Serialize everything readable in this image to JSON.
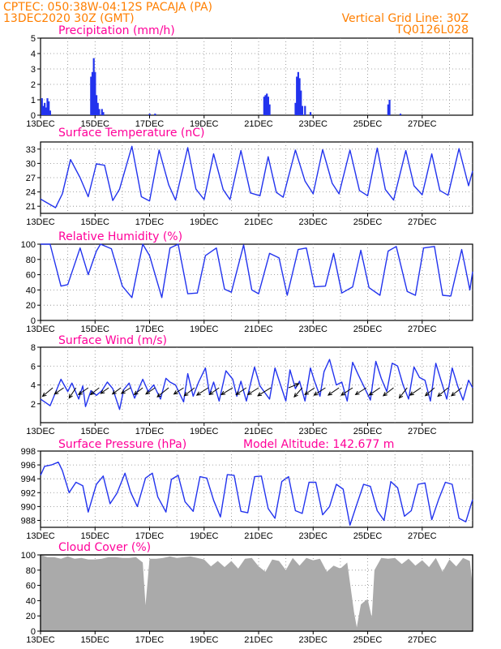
{
  "header": {
    "left_line1": "CPTEC:   050:38W-04:12S   PACAJA (PA)",
    "left_line2": "13DEC2020 30Z (GMT)",
    "right_line1": "Vertical Grid Line: 30Z",
    "right_line2": "TQ0126L028"
  },
  "model_altitude": "Model Altitude: 142.677 m",
  "date_labels": [
    "13DEC",
    "15DEC",
    "17DEC",
    "19DEC",
    "21DEC",
    "23DEC",
    "25DEC",
    "27DEC"
  ],
  "chart_data": [
    {
      "type": "bar",
      "title": "Precipitation (mm/h)",
      "ylim": [
        0,
        5
      ],
      "yticks": [
        0,
        1,
        2,
        3,
        4,
        5
      ],
      "grid": true,
      "x_unit": "days since 13DEC",
      "x": [
        0.05,
        0.1,
        0.15,
        0.2,
        0.25,
        0.3,
        0.35,
        1.85,
        1.9,
        1.95,
        2.0,
        2.05,
        2.1,
        2.15,
        2.25,
        2.3,
        4.0,
        4.2,
        8.2,
        8.25,
        8.3,
        8.35,
        8.4,
        9.35,
        9.4,
        9.45,
        9.5,
        9.55,
        9.6,
        9.7,
        9.9,
        12.75,
        12.8,
        13.2
      ],
      "values": [
        1.1,
        0.6,
        0.8,
        0.5,
        1.1,
        0.9,
        0.3,
        2.5,
        2.8,
        3.7,
        2.8,
        1.3,
        0.8,
        0.4,
        0.4,
        0.2,
        0.1,
        0.1,
        1.2,
        1.3,
        1.4,
        1.2,
        0.7,
        0.8,
        2.5,
        2.8,
        2.4,
        1.6,
        0.6,
        0.6,
        0.2,
        0.7,
        1.0,
        0.1
      ]
    },
    {
      "type": "line",
      "title": "Surface Temperature (nC)",
      "ylim": [
        19.5,
        34.5
      ],
      "yticks": [
        21,
        24,
        27,
        30,
        33
      ],
      "grid": true,
      "x_unit": "days since 13DEC",
      "x": [
        0,
        0.55,
        0.8,
        1.1,
        1.45,
        1.75,
        2.05,
        2.35,
        2.65,
        2.9,
        3.35,
        3.7,
        4.0,
        4.35,
        4.7,
        4.95,
        5.4,
        5.7,
        6.0,
        6.35,
        6.7,
        6.95,
        7.35,
        7.7,
        8.05,
        8.35,
        8.65,
        8.9,
        9.35,
        9.7,
        10.0,
        10.35,
        10.7,
        10.95,
        11.35,
        11.7,
        12.0,
        12.35,
        12.65,
        12.95,
        13.4,
        13.7,
        14.0,
        14.35,
        14.65,
        14.95,
        15.35,
        15.7,
        15.85
      ],
      "values": [
        22.5,
        20.7,
        23.6,
        30.8,
        27.0,
        23.0,
        29.9,
        29.6,
        22.2,
        24.6,
        33.6,
        23.0,
        22.1,
        32.8,
        25.5,
        22.3,
        33.3,
        24.6,
        22.4,
        32.0,
        24.5,
        22.4,
        32.7,
        23.8,
        23.2,
        31.4,
        23.9,
        22.9,
        32.8,
        26.3,
        23.6,
        32.9,
        25.8,
        23.6,
        32.8,
        24.3,
        23.2,
        33.2,
        24.5,
        22.3,
        32.7,
        25.3,
        23.4,
        32.0,
        24.3,
        23.3,
        33.1,
        25.3,
        28.4
      ]
    },
    {
      "type": "line",
      "title": "Relative Humidity (%)",
      "ylim": [
        0,
        100
      ],
      "yticks": [
        0,
        20,
        40,
        60,
        80,
        100
      ],
      "grid": true,
      "x_unit": "days since 13DEC",
      "x": [
        0,
        0.35,
        0.75,
        1.0,
        1.45,
        1.75,
        2.05,
        2.2,
        2.6,
        3.0,
        3.35,
        3.75,
        4.0,
        4.45,
        4.75,
        5.05,
        5.4,
        5.75,
        6.05,
        6.45,
        6.75,
        7.0,
        7.45,
        7.75,
        8.0,
        8.4,
        8.75,
        9.05,
        9.45,
        9.75,
        10.05,
        10.45,
        10.75,
        11.05,
        11.45,
        11.75,
        12.05,
        12.45,
        12.75,
        13.05,
        13.45,
        13.75,
        14.05,
        14.45,
        14.75,
        15.05,
        15.45,
        15.75,
        15.85
      ],
      "values": [
        100,
        100,
        45,
        47,
        95,
        60,
        91,
        100,
        94,
        45,
        30,
        100,
        85,
        30,
        95,
        100,
        35,
        36,
        85,
        95,
        41,
        37,
        99,
        40,
        35,
        88,
        82,
        33,
        93,
        95,
        44,
        45,
        88,
        36,
        44,
        92,
        43,
        33,
        91,
        97,
        38,
        33,
        95,
        97,
        33,
        32,
        93,
        40,
        64
      ]
    },
    {
      "type": "line",
      "title": "Surface Wind (m/s)",
      "ylim": [
        0,
        8
      ],
      "yticks": [
        2,
        4,
        6,
        8
      ],
      "grid": true,
      "x_unit": "days since 13DEC",
      "x": [
        0,
        0.35,
        0.75,
        1.0,
        1.15,
        1.4,
        1.55,
        1.65,
        1.85,
        2.05,
        2.25,
        2.45,
        2.65,
        2.9,
        3.05,
        3.25,
        3.45,
        3.75,
        3.95,
        4.15,
        4.4,
        4.6,
        4.75,
        4.95,
        5.25,
        5.4,
        5.6,
        5.8,
        6.05,
        6.2,
        6.35,
        6.55,
        6.8,
        7.05,
        7.2,
        7.35,
        7.55,
        7.85,
        8.05,
        8.2,
        8.4,
        8.6,
        8.85,
        9.0,
        9.15,
        9.35,
        9.5,
        9.7,
        9.9,
        10.05,
        10.25,
        10.4,
        10.6,
        10.85,
        11.05,
        11.25,
        11.45,
        11.65,
        11.9,
        12.1,
        12.3,
        12.5,
        12.7,
        12.9,
        13.1,
        13.3,
        13.5,
        13.7,
        13.9,
        14.1,
        14.3,
        14.5,
        14.7,
        14.9,
        15.1,
        15.3,
        15.5,
        15.7,
        15.85
      ],
      "values": [
        2.5,
        1.8,
        4.6,
        3.3,
        4.2,
        2.5,
        3.9,
        1.7,
        3.4,
        2.9,
        3.4,
        4.3,
        3.6,
        1.4,
        3.5,
        4.2,
        2.6,
        4.6,
        3.3,
        4.0,
        2.5,
        4.7,
        4.3,
        4.0,
        2.2,
        5.2,
        2.8,
        4.3,
        5.8,
        3.0,
        4.3,
        2.3,
        5.5,
        4.6,
        2.8,
        4.4,
        2.3,
        5.9,
        3.9,
        3.3,
        2.5,
        5.8,
        3.6,
        2.3,
        5.6,
        3.6,
        4.4,
        2.3,
        5.8,
        4.4,
        2.8,
        5.4,
        6.7,
        4.0,
        4.3,
        2.3,
        6.4,
        5.1,
        3.6,
        2.4,
        6.5,
        4.7,
        3.3,
        6.3,
        6.0,
        4.0,
        2.5,
        5.9,
        4.8,
        4.5,
        2.3,
        6.3,
        4.4,
        2.5,
        5.8,
        3.9,
        2.4,
        4.5,
        3.7
      ],
      "arrows": [
        {
          "day": 0.45,
          "u": -1.8,
          "v": -1.5
        },
        {
          "day": 0.85,
          "u": -1.6,
          "v": -1.1
        },
        {
          "day": 1.3,
          "u": -1.2,
          "v": -1.8
        },
        {
          "day": 1.75,
          "u": -1.7,
          "v": -1.2
        },
        {
          "day": 2.15,
          "u": -1.5,
          "v": -1.2
        },
        {
          "day": 2.5,
          "u": -1.4,
          "v": -1.0
        },
        {
          "day": 2.95,
          "u": -1.5,
          "v": -1.1
        },
        {
          "day": 3.3,
          "u": -1.6,
          "v": -1.0
        },
        {
          "day": 3.75,
          "u": -1.5,
          "v": -1.2
        },
        {
          "day": 4.2,
          "u": -1.6,
          "v": -1.1
        },
        {
          "day": 4.7,
          "u": -2.0,
          "v": -1.6
        },
        {
          "day": 5.25,
          "u": -1.7,
          "v": -1.1
        },
        {
          "day": 5.65,
          "u": -1.8,
          "v": -1.4
        },
        {
          "day": 6.15,
          "u": -2.0,
          "v": -1.3
        },
        {
          "day": 6.55,
          "u": -1.7,
          "v": -1.2
        },
        {
          "day": 7.05,
          "u": -2.0,
          "v": -1.2
        },
        {
          "day": 7.55,
          "u": -1.8,
          "v": -1.2
        },
        {
          "day": 8.0,
          "u": -1.9,
          "v": -1.2
        },
        {
          "day": 8.45,
          "u": -2.3,
          "v": -1.4
        },
        {
          "day": 9.1,
          "u": 1.8,
          "v": 0.7
        },
        {
          "day": 9.6,
          "u": -1.4,
          "v": -1.6
        },
        {
          "day": 10.05,
          "u": -1.7,
          "v": -1.2
        },
        {
          "day": 10.45,
          "u": -2.0,
          "v": -1.3
        },
        {
          "day": 10.95,
          "u": -1.9,
          "v": -1.3
        },
        {
          "day": 11.45,
          "u": -2.0,
          "v": -1.3
        },
        {
          "day": 11.95,
          "u": -1.9,
          "v": -1.2
        },
        {
          "day": 12.45,
          "u": -1.9,
          "v": -1.3
        },
        {
          "day": 12.95,
          "u": -1.8,
          "v": -1.4
        },
        {
          "day": 13.45,
          "u": -1.4,
          "v": -1.8
        },
        {
          "day": 13.95,
          "u": -1.9,
          "v": -1.3
        },
        {
          "day": 14.45,
          "u": -1.6,
          "v": -1.4
        },
        {
          "day": 14.95,
          "u": -1.8,
          "v": -1.5
        },
        {
          "day": 15.45,
          "u": -1.8,
          "v": -1.4
        }
      ]
    },
    {
      "type": "line",
      "title": "Surface Pressure (hPa)",
      "ylim": [
        987,
        998
      ],
      "yticks": [
        988,
        990,
        992,
        994,
        996,
        998
      ],
      "grid": true,
      "x_unit": "days since 13DEC",
      "x": [
        0,
        0.15,
        0.4,
        0.65,
        0.8,
        1.05,
        1.3,
        1.55,
        1.75,
        2.05,
        2.3,
        2.55,
        2.8,
        3.1,
        3.3,
        3.55,
        3.85,
        4.1,
        4.3,
        4.6,
        4.8,
        5.05,
        5.3,
        5.6,
        5.85,
        6.1,
        6.35,
        6.6,
        6.85,
        7.1,
        7.35,
        7.6,
        7.85,
        8.1,
        8.35,
        8.6,
        8.85,
        9.1,
        9.35,
        9.6,
        9.85,
        10.1,
        10.35,
        10.6,
        10.85,
        11.1,
        11.35,
        11.6,
        11.85,
        12.1,
        12.35,
        12.6,
        12.85,
        13.1,
        13.35,
        13.6,
        13.85,
        14.1,
        14.35,
        14.6,
        14.85,
        15.1,
        15.35,
        15.6,
        15.85
      ],
      "values": [
        994.5,
        995.8,
        996.0,
        996.4,
        995.2,
        992.0,
        993.5,
        993.0,
        989.2,
        993.2,
        994.4,
        990.4,
        991.9,
        994.8,
        992.1,
        990.0,
        994.1,
        994.8,
        991.4,
        989.2,
        993.9,
        994.5,
        990.7,
        989.3,
        994.3,
        994.1,
        990.9,
        988.5,
        994.6,
        994.5,
        989.3,
        989.1,
        994.3,
        994.4,
        989.7,
        988.3,
        993.6,
        994.3,
        989.4,
        989.0,
        993.5,
        993.5,
        988.8,
        990.0,
        993.2,
        992.5,
        987.3,
        990.3,
        993.2,
        992.9,
        989.4,
        988.0,
        993.6,
        992.7,
        988.6,
        989.4,
        993.2,
        993.4,
        988.1,
        991.0,
        993.5,
        993.2,
        988.3,
        987.8,
        991.0
      ]
    },
    {
      "type": "area",
      "title": "Cloud Cover (%)",
      "ylim": [
        0,
        100
      ],
      "yticks": [
        0,
        20,
        40,
        60,
        80,
        100
      ],
      "grid": true,
      "x_unit": "days since 13DEC",
      "x": [
        0,
        0.25,
        0.5,
        0.75,
        1.0,
        1.25,
        1.5,
        1.75,
        2.0,
        2.25,
        2.5,
        2.75,
        3.0,
        3.25,
        3.5,
        3.75,
        3.85,
        4.0,
        4.25,
        4.5,
        4.75,
        5.0,
        5.25,
        5.5,
        5.75,
        6.0,
        6.25,
        6.5,
        6.75,
        7.0,
        7.25,
        7.5,
        7.75,
        8.0,
        8.25,
        8.5,
        8.75,
        9.0,
        9.25,
        9.5,
        9.75,
        10.0,
        10.25,
        10.5,
        10.75,
        11.0,
        11.25,
        11.5,
        11.6,
        11.75,
        11.85,
        12.0,
        12.15,
        12.25,
        12.5,
        12.75,
        13.0,
        13.25,
        13.5,
        13.75,
        14.0,
        14.25,
        14.5,
        14.75,
        15.0,
        15.25,
        15.5,
        15.75,
        15.85
      ],
      "values": [
        100,
        97,
        97,
        95,
        98,
        95,
        96,
        94,
        94,
        95,
        97,
        97,
        96,
        96,
        97,
        90,
        34,
        95,
        95,
        96,
        98,
        96,
        97,
        98,
        96,
        94,
        85,
        92,
        84,
        92,
        82,
        95,
        96,
        85,
        78,
        94,
        92,
        80,
        96,
        86,
        96,
        93,
        95,
        78,
        86,
        82,
        90,
        25,
        5,
        35,
        38,
        42,
        18,
        80,
        96,
        95,
        96,
        88,
        95,
        86,
        93,
        84,
        96,
        78,
        94,
        85,
        96,
        92,
        60
      ]
    }
  ]
}
